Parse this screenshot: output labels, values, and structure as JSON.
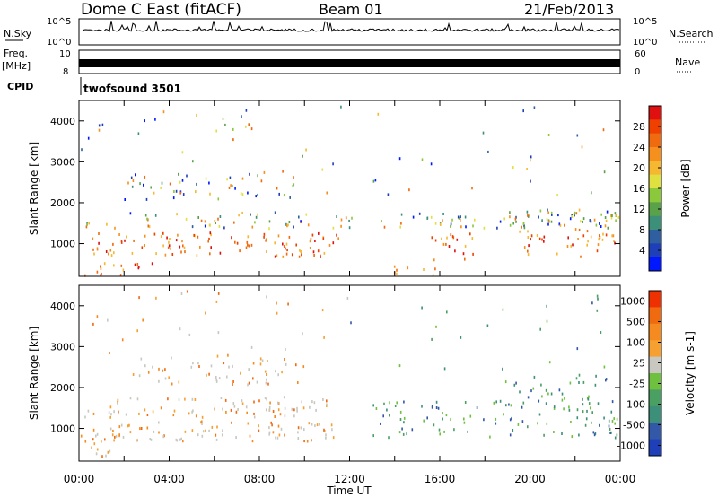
{
  "header": {
    "site": "Dome C East (fitACF)",
    "beam": "Beam 01",
    "date": "21/Feb/2013"
  },
  "top_panels": {
    "nsky": {
      "label": "N.Sky",
      "tick_top": "10^5",
      "tick_bottom": "10^0"
    },
    "nsearch": {
      "label": "N.Search",
      "tick_top": "10^5",
      "tick_bottom": "10^0"
    },
    "freq": {
      "label_1": "Freq.",
      "label_2": "[MHz]",
      "tick_top": "10",
      "tick_bottom": "8"
    },
    "nave": {
      "label": "Nave",
      "tick_top": "60",
      "tick_bottom": "0"
    },
    "cpid": {
      "label": "CPID",
      "value": "twofsound 3501"
    }
  },
  "chart_data": [
    {
      "type": "heatmap",
      "quantity": "Power",
      "xlabel": "",
      "ylabel": "Slant Range [km]",
      "ylim": [
        200,
        4500
      ],
      "yticks": [
        "1000",
        "2000",
        "3000",
        "4000"
      ],
      "xlim_hours": [
        0,
        24
      ],
      "colorbar": {
        "label": "Power [dB]",
        "tick_labels": [
          "4",
          "8",
          "12",
          "16",
          "20",
          "24",
          "28"
        ],
        "colors": [
          "#0018ff",
          "#1f3fb8",
          "#2f5fa0",
          "#3c8f78",
          "#5aa24a",
          "#8cc83c",
          "#e0e040",
          "#f5b830",
          "#f5901e",
          "#f06a10",
          "#ef4000",
          "#e01010"
        ]
      },
      "bands": [
        {
          "t0": 0.2,
          "t1": 24,
          "r0": 1400,
          "r1": 1800,
          "dens": 0.5
        },
        {
          "t0": 0.5,
          "t1": 11.5,
          "r0": 700,
          "r1": 1300,
          "dens": 0.65
        },
        {
          "t0": 0.2,
          "t1": 3.5,
          "r0": 250,
          "r1": 600,
          "dens": 0.55
        },
        {
          "t0": 2,
          "t1": 10,
          "r0": 2100,
          "r1": 2800,
          "dens": 0.35
        },
        {
          "t0": 13.8,
          "t1": 16,
          "r0": 250,
          "r1": 500,
          "dens": 0.6
        },
        {
          "t0": 15.5,
          "t1": 17.5,
          "r0": 600,
          "r1": 1500,
          "dens": 0.5
        },
        {
          "t0": 19.5,
          "t1": 24,
          "r0": 700,
          "r1": 1900,
          "dens": 0.5
        },
        {
          "t0": 6,
          "t1": 8.5,
          "r0": 3800,
          "r1": 4300,
          "dens": 0.2
        },
        {
          "t0": 0,
          "t1": 24,
          "r0": 2200,
          "r1": 4400,
          "dens": 0.04
        }
      ]
    },
    {
      "type": "heatmap",
      "quantity": "Velocity",
      "xlabel": "Time UT",
      "ylabel": "Slant Range [km]",
      "ylim": [
        200,
        4500
      ],
      "yticks": [
        "1000",
        "2000",
        "3000",
        "4000"
      ],
      "xlim_hours": [
        0,
        24
      ],
      "xticks": [
        "00:00",
        "04:00",
        "08:00",
        "12:00",
        "16:00",
        "20:00",
        "00:00"
      ],
      "colorbar": {
        "label": "Velocity [m s-1]",
        "tick_labels": [
          "1000",
          "500",
          "100",
          "25",
          "-25",
          "-100",
          "-500",
          "-1000"
        ],
        "colors": [
          "#1f3fb8",
          "#3358a8",
          "#3c8f78",
          "#4aa062",
          "#70c040",
          "#c8c8c0",
          "#f5a030",
          "#f58a20",
          "#f06a10",
          "#ef3000"
        ]
      },
      "bands": [
        {
          "t0": 0.2,
          "t1": 11,
          "r0": 1300,
          "r1": 1800,
          "dens": 0.6
        },
        {
          "t0": 0.5,
          "t1": 11.5,
          "r0": 700,
          "r1": 1200,
          "dens": 0.65
        },
        {
          "t0": 2,
          "t1": 10,
          "r0": 2100,
          "r1": 2800,
          "dens": 0.4
        },
        {
          "t0": 13,
          "t1": 24,
          "r0": 800,
          "r1": 1700,
          "dens": 0.45
        },
        {
          "t0": 18.5,
          "t1": 23,
          "r0": 1700,
          "r1": 2400,
          "dens": 0.35
        },
        {
          "t0": 0,
          "t1": 2,
          "r0": 300,
          "r1": 900,
          "dens": 0.5
        },
        {
          "t0": 0,
          "t1": 24,
          "r0": 2200,
          "r1": 4400,
          "dens": 0.04
        }
      ]
    }
  ]
}
